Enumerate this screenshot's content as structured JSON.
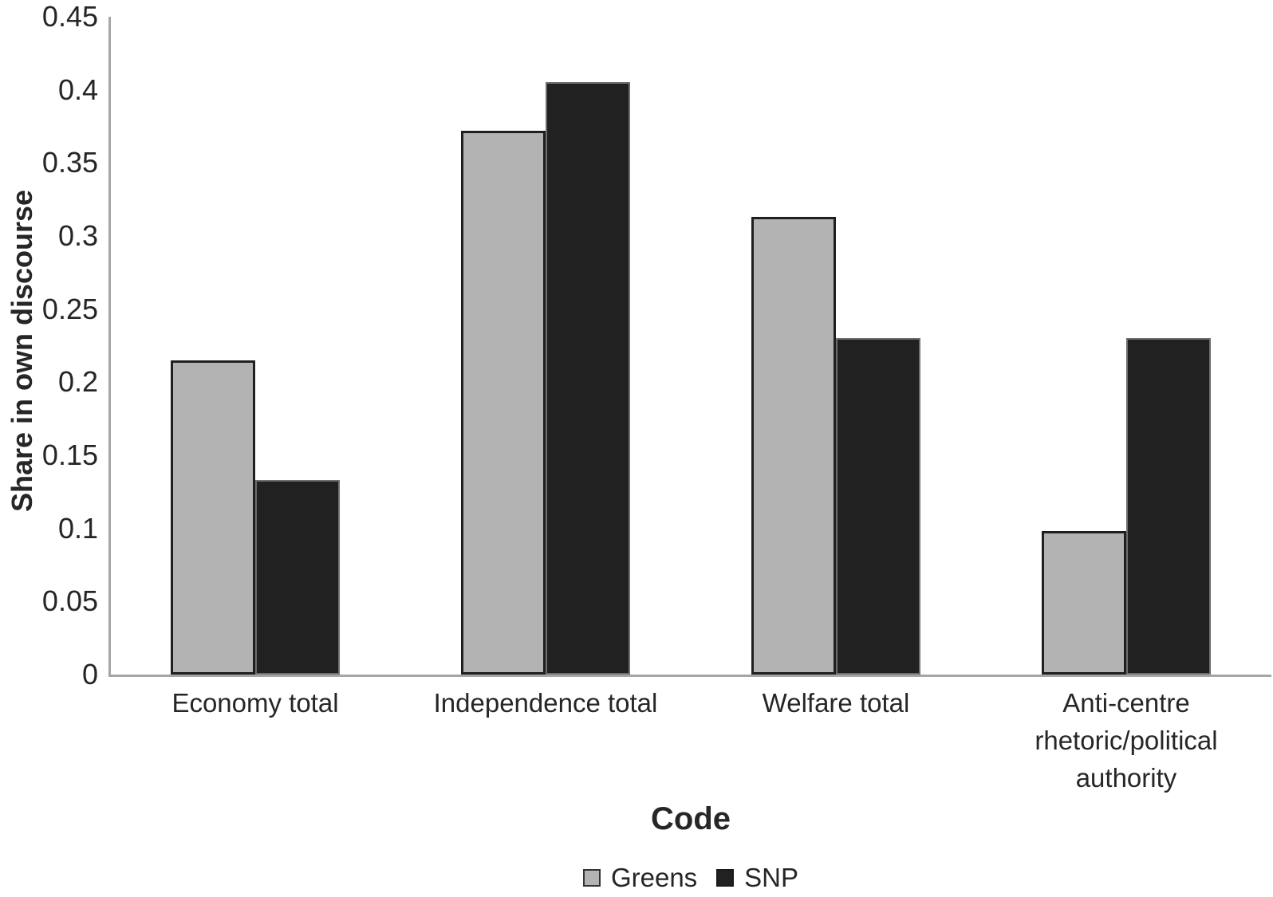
{
  "figure": {
    "background": "#ffffff",
    "axis_color": "#a6a6a6",
    "text_color": "#262626"
  },
  "chart_data": {
    "type": "bar",
    "title": "",
    "xlabel": "Code",
    "ylabel": "Share in own discourse",
    "ylim": [
      0,
      0.45
    ],
    "grid": false,
    "legend_position": "bottom",
    "yticks": [
      0,
      0.05,
      0.1,
      0.15,
      0.2,
      0.25,
      0.3,
      0.35,
      0.4,
      0.45
    ],
    "categories": [
      "Economy total",
      "Independence total",
      "Welfare total",
      "Anti-centre\nrhetoric/political\nauthority"
    ],
    "series": [
      {
        "name": "Greens",
        "color": "#b3b3b3",
        "border_color": "#1f1f1f",
        "values": [
          0.215,
          0.372,
          0.313,
          0.098
        ]
      },
      {
        "name": "SNP",
        "color": "#212121",
        "border_color": "#6e6e6e",
        "values": [
          0.133,
          0.405,
          0.23,
          0.23
        ]
      }
    ]
  }
}
